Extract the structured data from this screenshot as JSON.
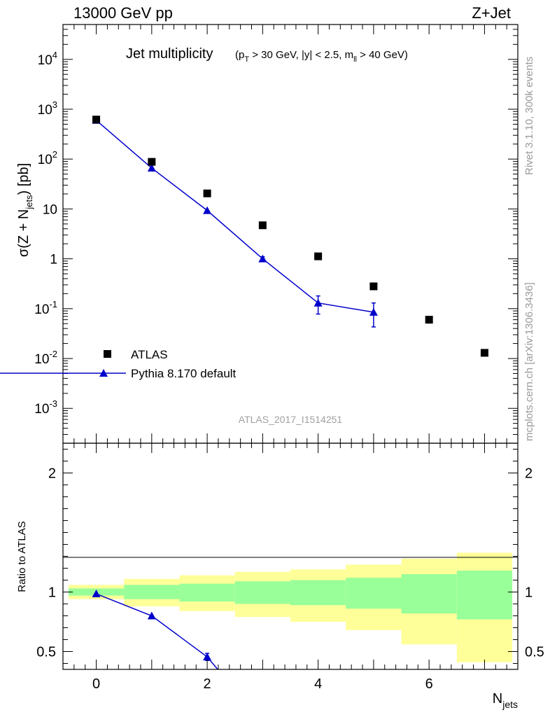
{
  "header": {
    "left": "13000 GeV pp",
    "right": "Z+Jet"
  },
  "side_labels": {
    "rivet": "Rivet 3.1.10,  300k events",
    "mcplots": "mcplots.cern.ch [arXiv:1306.3436]"
  },
  "chart_data": [
    {
      "type": "scatter",
      "title": "Jet multiplicity",
      "subtitle": "(p_T > 30 GeV, |y| < 2.5, m_ll > 40 GeV)",
      "analysis_id": "ATLAS_2017_I1514251",
      "xlabel": "N_jets",
      "ylabel": "σ(Z + N_jets) [pb]",
      "yscale": "log",
      "xlim": [
        -0.6,
        7.6
      ],
      "ylim": [
        0.0002,
        50000
      ],
      "yticks": [
        {
          "v": 0.001,
          "label": "10^-3"
        },
        {
          "v": 0.01,
          "label": "10^-2"
        },
        {
          "v": 0.1,
          "label": "10^-1"
        },
        {
          "v": 1,
          "label": "1"
        },
        {
          "v": 10,
          "label": "10"
        },
        {
          "v": 100,
          "label": "10^2"
        },
        {
          "v": 1000,
          "label": "10^3"
        },
        {
          "v": 10000,
          "label": "10^4"
        }
      ],
      "legend_position": "lower-left",
      "series": [
        {
          "name": "ATLAS",
          "marker": "square",
          "color": "#000000",
          "x": [
            0,
            1,
            2,
            3,
            4,
            5,
            6,
            7
          ],
          "y": [
            620,
            88,
            20.5,
            4.7,
            1.12,
            0.28,
            0.06,
            0.013
          ]
        },
        {
          "name": "Pythia 8.170 default",
          "marker": "triangle",
          "color": "#0000cc",
          "x": [
            0,
            1,
            2,
            3,
            4,
            5
          ],
          "y": [
            600,
            66,
            9.3,
            1.0,
            0.13,
            0.085
          ],
          "err_low": [
            0,
            0,
            0,
            0.1,
            0.052,
            0.042
          ],
          "err_high": [
            0,
            0,
            0,
            0.1,
            0.05,
            0.045
          ]
        }
      ]
    },
    {
      "type": "area",
      "ylabel": "Ratio to ATLAS",
      "xlabel": "N_jets",
      "xlim": [
        -0.6,
        7.6
      ],
      "ylim": [
        0.35,
        2.25
      ],
      "xticks": [
        0,
        2,
        4,
        6
      ],
      "yticks": [
        0.5,
        1,
        2
      ],
      "bands": {
        "bins": [
          -0.5,
          0.5,
          1.5,
          2.5,
          3.5,
          4.5,
          5.5,
          6.5,
          7.5
        ],
        "outer_low": [
          0.94,
          0.88,
          0.84,
          0.79,
          0.75,
          0.68,
          0.56,
          0.41
        ],
        "outer_high": [
          1.06,
          1.11,
          1.14,
          1.17,
          1.19,
          1.23,
          1.28,
          1.33
        ],
        "inner_low": [
          0.97,
          0.94,
          0.92,
          0.9,
          0.89,
          0.86,
          0.82,
          0.77
        ],
        "inner_high": [
          1.03,
          1.06,
          1.07,
          1.09,
          1.1,
          1.12,
          1.15,
          1.18
        ]
      },
      "series": [
        {
          "name": "Pythia 8.170 default",
          "color": "#0000cc",
          "x": [
            0,
            1,
            2,
            2.19
          ],
          "y": [
            0.985,
            0.8,
            0.455,
            0.35
          ],
          "err": [
            0,
            0,
            0.03,
            0
          ]
        }
      ]
    }
  ],
  "colors": {
    "band_outer": "#ffff99",
    "band_inner": "#99ff99",
    "series": "#0000cc",
    "data": "#000000"
  }
}
